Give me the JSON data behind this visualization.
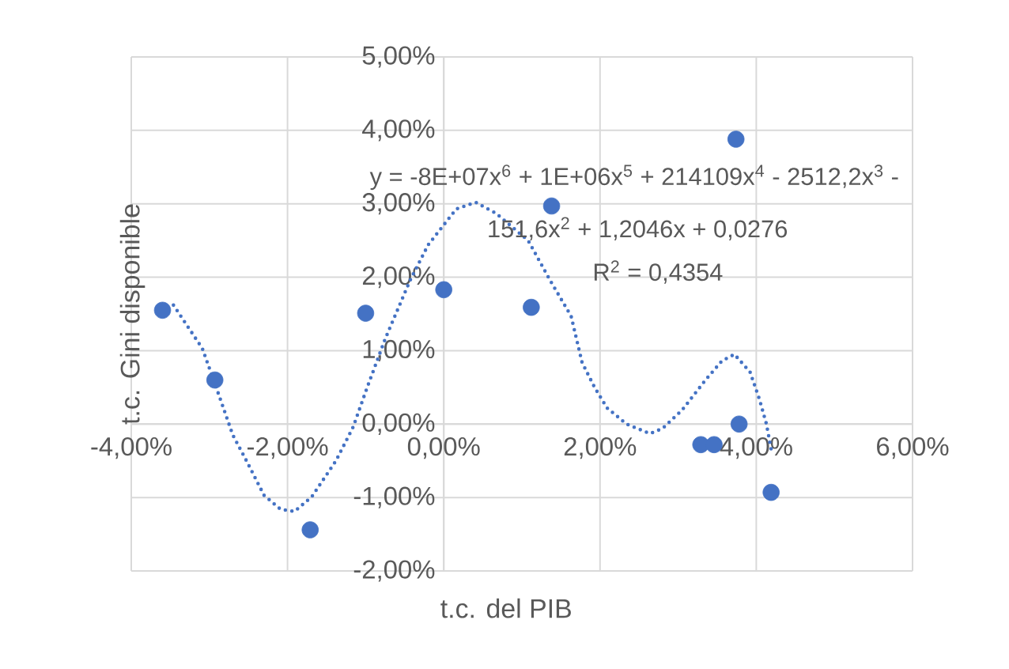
{
  "chart_data": {
    "type": "scatter",
    "xlabel": "t.c. del PIB",
    "ylabel": "t.c. Gini disponible",
    "annotations": [
      "y = -8E+07x$^{6}$ + 1E+06x$^{5}$ + 214109x$^{4}$ - 2512,2x$^{3}$ -",
      "151,6x$^{2}$ + 1,2046x + 0,0276",
      "R$^{2}$ = 0,4354"
    ],
    "series": [
      {
        "color": "#4472c4",
        "marker": "circle",
        "x": [
          -3.6,
          -2.93,
          -1.71,
          -1.0,
          0.0,
          1.12,
          1.38,
          3.74,
          3.29,
          3.46,
          3.78,
          4.19
        ],
        "values": [
          1.55,
          0.6,
          -1.44,
          1.51,
          1.83,
          1.59,
          2.97,
          3.88,
          -0.28,
          -0.28,
          0.0,
          -0.93
        ]
      },
      {
        "type": "line",
        "color": "#4472c4",
        "marker": "none",
        "line_style": "dotted",
        "x": [
          -3.46,
          -3.09,
          -2.87,
          -2.7,
          -2.54,
          -2.3,
          -2.09,
          -1.91,
          -1.69,
          -1.38,
          -1.16,
          -0.98,
          -0.75,
          -0.43,
          -0.2,
          0.16,
          0.41,
          0.67,
          1.08,
          1.36,
          1.63,
          1.77,
          1.93,
          2.09,
          2.34,
          2.64,
          2.8,
          3.05,
          3.35,
          3.56,
          3.72,
          3.92,
          4.04,
          4.13,
          4.19
        ],
        "values": [
          1.62,
          1.03,
          0.37,
          -0.15,
          -0.47,
          -0.97,
          -1.16,
          -1.19,
          -0.99,
          -0.5,
          -0.04,
          0.5,
          1.16,
          1.96,
          2.44,
          2.93,
          3.02,
          2.87,
          2.5,
          1.96,
          1.47,
          0.84,
          0.5,
          0.22,
          0.0,
          -0.13,
          -0.06,
          0.19,
          0.6,
          0.86,
          0.95,
          0.71,
          0.34,
          0.0,
          -0.34
        ]
      }
    ],
    "xlim": [
      -4,
      6
    ],
    "ylim": [
      -2,
      5
    ],
    "xticks": [
      {
        "value": -4,
        "label": "-4,00%"
      },
      {
        "value": -2,
        "label": "-2,00%"
      },
      {
        "value": 0,
        "label": "0,00%"
      },
      {
        "value": 2,
        "label": "2,00%"
      },
      {
        "value": 4,
        "label": "4,00%"
      },
      {
        "value": 6,
        "label": "6,00%"
      }
    ],
    "yticks": [
      {
        "value": -2,
        "label": "-2,00%"
      },
      {
        "value": -1,
        "label": "-1,00%"
      },
      {
        "value": 0,
        "label": "0,00%"
      },
      {
        "value": 1,
        "label": "1,00%"
      },
      {
        "value": 2,
        "label": "2,00%"
      },
      {
        "value": 3,
        "label": "3,00%"
      },
      {
        "value": 4,
        "label": "4,00%"
      },
      {
        "value": 5,
        "label": "5,00%"
      }
    ],
    "grid": true
  }
}
